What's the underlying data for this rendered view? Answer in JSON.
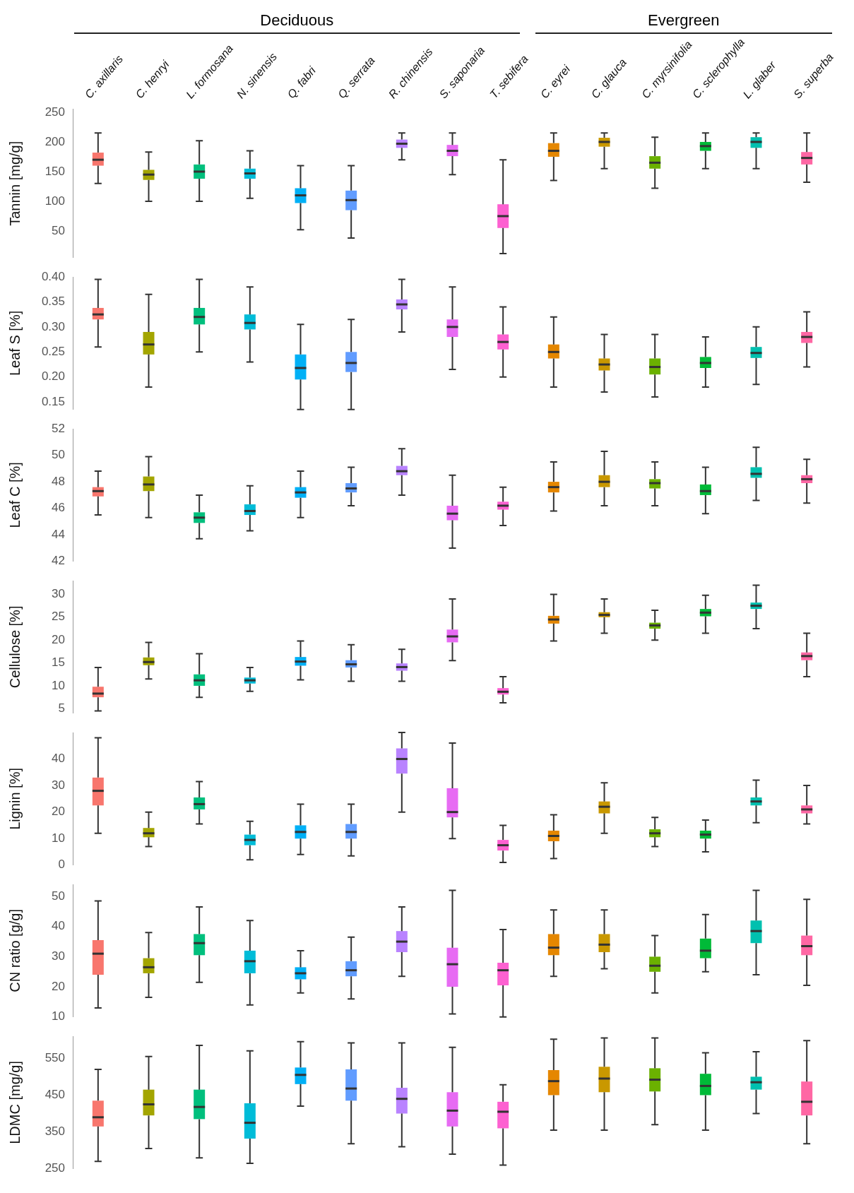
{
  "chart_data": [
    {
      "type": "box",
      "ylabel": "Tannin [mg/g]",
      "annotations": [
        "Deciduous",
        "Evergreen"
      ],
      "categories": [
        "C. axillaris",
        "C. henryi",
        "L. formosana",
        "N. sinensis",
        "Q. fabri",
        "Q. serrata",
        "R. chinensis",
        "S. saponaria",
        "T. sebifera",
        "C. eyrei",
        "C. glauca",
        "C. myrsinifolia",
        "C. sclerophylla",
        "L. glaber",
        "S. superba"
      ],
      "colors": [
        "#f8766d",
        "#a3a500",
        "#00bf7d",
        "#00bcd8",
        "#00b0f6",
        "#619cff",
        "#b983ff",
        "#e76bf3",
        "#fd61d1",
        "#e58700",
        "#c99800",
        "#6bb100",
        "#00ba38",
        "#00c0af",
        "#ff67a4"
      ],
      "ylim": [
        5,
        255
      ],
      "yticks": [
        50,
        100,
        150,
        200,
        250
      ],
      "grid": false,
      "boxes": [
        {
          "low": 130,
          "q1": 160,
          "median": 170,
          "q3": 182,
          "high": 215
        },
        {
          "low": 100,
          "q1": 136,
          "median": 145,
          "q3": 153,
          "high": 183
        },
        {
          "low": 100,
          "q1": 138,
          "median": 150,
          "q3": 162,
          "high": 202
        },
        {
          "low": 105,
          "q1": 138,
          "median": 147,
          "q3": 155,
          "high": 185
        },
        {
          "low": 52,
          "q1": 97,
          "median": 110,
          "q3": 122,
          "high": 160
        },
        {
          "low": 38,
          "q1": 85,
          "median": 102,
          "q3": 118,
          "high": 160
        },
        {
          "low": 170,
          "q1": 190,
          "median": 197,
          "q3": 204,
          "high": 215
        },
        {
          "low": 145,
          "q1": 176,
          "median": 185,
          "q3": 195,
          "high": 215
        },
        {
          "low": 12,
          "q1": 55,
          "median": 75,
          "q3": 95,
          "high": 170
        },
        {
          "low": 135,
          "q1": 175,
          "median": 185,
          "q3": 198,
          "high": 215
        },
        {
          "low": 155,
          "q1": 192,
          "median": 200,
          "q3": 207,
          "high": 215
        },
        {
          "low": 122,
          "q1": 155,
          "median": 165,
          "q3": 176,
          "high": 208
        },
        {
          "low": 155,
          "q1": 185,
          "median": 193,
          "q3": 200,
          "high": 215
        },
        {
          "low": 155,
          "q1": 190,
          "median": 200,
          "q3": 208,
          "high": 215
        },
        {
          "low": 132,
          "q1": 162,
          "median": 173,
          "q3": 183,
          "high": 215
        }
      ]
    },
    {
      "type": "box",
      "ylabel": "Leaf S [%]",
      "tick_labels": "y",
      "colors": [
        "#f8766d",
        "#a3a500",
        "#00bf7d",
        "#00bcd8",
        "#00b0f6",
        "#619cff",
        "#b983ff",
        "#e76bf3",
        "#fd61d1",
        "#e58700",
        "#c99800",
        "#6bb100",
        "#00ba38",
        "#00c0af",
        "#ff67a4"
      ],
      "ylim": [
        0.135,
        0.4
      ],
      "yticks": [
        {
          "value": 0.15,
          "label": "0.15"
        },
        {
          "value": 0.2,
          "label": "0.20"
        },
        {
          "value": 0.25,
          "label": "0.25"
        },
        {
          "value": 0.3,
          "label": "0.30"
        },
        {
          "value": 0.35,
          "label": "0.35"
        },
        {
          "value": 0.4,
          "label": "0.40"
        }
      ],
      "grid": false,
      "boxes": [
        {
          "low": 0.26,
          "q1": 0.315,
          "median": 0.325,
          "q3": 0.338,
          "high": 0.395
        },
        {
          "low": 0.18,
          "q1": 0.245,
          "median": 0.265,
          "q3": 0.29,
          "high": 0.365
        },
        {
          "low": 0.25,
          "q1": 0.305,
          "median": 0.32,
          "q3": 0.338,
          "high": 0.395
        },
        {
          "low": 0.23,
          "q1": 0.295,
          "median": 0.308,
          "q3": 0.325,
          "high": 0.38
        },
        {
          "low": 0.135,
          "q1": 0.195,
          "median": 0.218,
          "q3": 0.245,
          "high": 0.305
        },
        {
          "low": 0.135,
          "q1": 0.21,
          "median": 0.228,
          "q3": 0.25,
          "high": 0.315
        },
        {
          "low": 0.29,
          "q1": 0.335,
          "median": 0.345,
          "q3": 0.355,
          "high": 0.395
        },
        {
          "low": 0.215,
          "q1": 0.28,
          "median": 0.3,
          "q3": 0.315,
          "high": 0.38
        },
        {
          "low": 0.2,
          "q1": 0.255,
          "median": 0.27,
          "q3": 0.285,
          "high": 0.34
        },
        {
          "low": 0.18,
          "q1": 0.237,
          "median": 0.25,
          "q3": 0.265,
          "high": 0.32
        },
        {
          "low": 0.17,
          "q1": 0.213,
          "median": 0.225,
          "q3": 0.237,
          "high": 0.285
        },
        {
          "low": 0.16,
          "q1": 0.205,
          "median": 0.22,
          "q3": 0.237,
          "high": 0.285
        },
        {
          "low": 0.18,
          "q1": 0.218,
          "median": 0.228,
          "q3": 0.24,
          "high": 0.28
        },
        {
          "low": 0.185,
          "q1": 0.238,
          "median": 0.248,
          "q3": 0.26,
          "high": 0.3
        },
        {
          "low": 0.22,
          "q1": 0.268,
          "median": 0.28,
          "q3": 0.29,
          "high": 0.33
        }
      ]
    },
    {
      "type": "box",
      "ylabel": "Leaf C [%]",
      "tick_labels": "y",
      "colors": [
        "#f8766d",
        "#a3a500",
        "#00bf7d",
        "#00bcd8",
        "#00b0f6",
        "#619cff",
        "#b983ff",
        "#e76bf3",
        "#fd61d1",
        "#e58700",
        "#c99800",
        "#6bb100",
        "#00ba38",
        "#00c0af",
        "#ff67a4"
      ],
      "ylim": [
        42,
        52
      ],
      "yticks": [
        42,
        44,
        46,
        48,
        50,
        52
      ],
      "grid": false,
      "boxes": [
        {
          "low": 45.5,
          "q1": 46.9,
          "median": 47.3,
          "q3": 47.6,
          "high": 48.8
        },
        {
          "low": 45.3,
          "q1": 47.3,
          "median": 47.8,
          "q3": 48.4,
          "high": 49.9
        },
        {
          "low": 43.7,
          "q1": 44.9,
          "median": 45.3,
          "q3": 45.7,
          "high": 47
        },
        {
          "low": 44.3,
          "q1": 45.5,
          "median": 45.8,
          "q3": 46.3,
          "high": 47.7
        },
        {
          "low": 45.3,
          "q1": 46.8,
          "median": 47.2,
          "q3": 47.6,
          "high": 48.8
        },
        {
          "low": 46.2,
          "q1": 47.2,
          "median": 47.5,
          "q3": 47.9,
          "high": 49.1
        },
        {
          "low": 47,
          "q1": 48.5,
          "median": 48.8,
          "q3": 49.2,
          "high": 50.5
        },
        {
          "low": 43,
          "q1": 45.1,
          "median": 45.6,
          "q3": 46.2,
          "high": 48.5
        },
        {
          "low": 44.7,
          "q1": 45.9,
          "median": 46.2,
          "q3": 46.5,
          "high": 47.6
        },
        {
          "low": 45.8,
          "q1": 47.2,
          "median": 47.6,
          "q3": 48,
          "high": 49.5
        },
        {
          "low": 46.2,
          "q1": 47.6,
          "median": 48,
          "q3": 48.5,
          "high": 50.3
        },
        {
          "low": 46.2,
          "q1": 47.5,
          "median": 47.9,
          "q3": 48.2,
          "high": 49.5
        },
        {
          "low": 45.6,
          "q1": 47,
          "median": 47.3,
          "q3": 47.8,
          "high": 49.1
        },
        {
          "low": 46.6,
          "q1": 48.3,
          "median": 48.6,
          "q3": 49.1,
          "high": 50.6
        },
        {
          "low": 46.4,
          "q1": 47.9,
          "median": 48.2,
          "q3": 48.5,
          "high": 49.7
        }
      ]
    },
    {
      "type": "box",
      "ylabel": "Cellulose [%]",
      "tick_labels": "y",
      "colors": [
        "#f8766d",
        "#a3a500",
        "#00bf7d",
        "#00bcd8",
        "#00b0f6",
        "#619cff",
        "#b983ff",
        "#e76bf3",
        "#fd61d1",
        "#e58700",
        "#c99800",
        "#6bb100",
        "#00ba38",
        "#00c0af",
        "#ff67a4"
      ],
      "ylim": [
        4,
        33
      ],
      "yticks": [
        5,
        10,
        15,
        20,
        25,
        30
      ],
      "grid": false,
      "boxes": [
        {
          "low": 4.5,
          "q1": 7.5,
          "median": 8.3,
          "q3": 9.8,
          "high": 14
        },
        {
          "low": 11.5,
          "q1": 14.5,
          "median": 15.2,
          "q3": 16.2,
          "high": 19.5
        },
        {
          "low": 7.5,
          "q1": 10,
          "median": 11.2,
          "q3": 12.5,
          "high": 17
        },
        {
          "low": 8.8,
          "q1": 10.5,
          "median": 11.2,
          "q3": 11.8,
          "high": 14
        },
        {
          "low": 11.3,
          "q1": 14.4,
          "median": 15.3,
          "q3": 16.3,
          "high": 19.8
        },
        {
          "low": 11,
          "q1": 14,
          "median": 14.7,
          "q3": 15.6,
          "high": 19
        },
        {
          "low": 11,
          "q1": 13.3,
          "median": 14.1,
          "q3": 14.9,
          "high": 18
        },
        {
          "low": 15.5,
          "q1": 19.5,
          "median": 20.8,
          "q3": 22.3,
          "high": 29
        },
        {
          "low": 6.3,
          "q1": 8.1,
          "median": 8.7,
          "q3": 9.5,
          "high": 12
        },
        {
          "low": 19.8,
          "q1": 23.6,
          "median": 24.5,
          "q3": 25.3,
          "high": 30
        },
        {
          "low": 21.5,
          "q1": 25,
          "median": 25.5,
          "q3": 26.1,
          "high": 29
        },
        {
          "low": 20,
          "q1": 22.5,
          "median": 23.2,
          "q3": 23.8,
          "high": 26.5
        },
        {
          "low": 21.5,
          "q1": 25.2,
          "median": 26,
          "q3": 26.8,
          "high": 29.8
        },
        {
          "low": 22.5,
          "q1": 26.8,
          "median": 27.5,
          "q3": 28.2,
          "high": 32
        },
        {
          "low": 12,
          "q1": 15.6,
          "median": 16.5,
          "q3": 17.3,
          "high": 21.5
        }
      ]
    },
    {
      "type": "box",
      "ylabel": "Lignin [%]",
      "tick_labels": "y",
      "colors": [
        "#f8766d",
        "#a3a500",
        "#00bf7d",
        "#00bcd8",
        "#00b0f6",
        "#619cff",
        "#b983ff",
        "#e76bf3",
        "#fd61d1",
        "#e58700",
        "#c99800",
        "#6bb100",
        "#00ba38",
        "#00c0af",
        "#ff67a4"
      ],
      "ylim": [
        0,
        50
      ],
      "yticks": [
        0,
        10,
        20,
        30,
        40
      ],
      "grid": false,
      "boxes": [
        {
          "low": 12,
          "q1": 22.5,
          "median": 28,
          "q3": 33,
          "high": 48
        },
        {
          "low": 7,
          "q1": 10.5,
          "median": 12,
          "q3": 14,
          "high": 20
        },
        {
          "low": 15.5,
          "q1": 21,
          "median": 23,
          "q3": 25.5,
          "high": 31.5
        },
        {
          "low": 2,
          "q1": 7.5,
          "median": 9.5,
          "q3": 11.5,
          "high": 16.5
        },
        {
          "low": 4,
          "q1": 10,
          "median": 12.5,
          "q3": 15,
          "high": 23
        },
        {
          "low": 3.5,
          "q1": 10,
          "median": 12.5,
          "q3": 15.5,
          "high": 23
        },
        {
          "low": 20,
          "q1": 34.5,
          "median": 40,
          "q3": 44,
          "high": 50
        },
        {
          "low": 10,
          "q1": 18,
          "median": 20,
          "q3": 29,
          "high": 46
        },
        {
          "low": 1,
          "q1": 5.5,
          "median": 7.5,
          "q3": 9.5,
          "high": 15
        },
        {
          "low": 2.5,
          "q1": 9,
          "median": 11,
          "q3": 13,
          "high": 19
        },
        {
          "low": 12,
          "q1": 19.5,
          "median": 22,
          "q3": 24,
          "high": 31
        },
        {
          "low": 7,
          "q1": 10.5,
          "median": 12,
          "q3": 13.5,
          "high": 18
        },
        {
          "low": 5,
          "q1": 10,
          "median": 11.5,
          "q3": 13,
          "high": 17
        },
        {
          "low": 16,
          "q1": 22.5,
          "median": 24,
          "q3": 25.5,
          "high": 32
        },
        {
          "low": 15.5,
          "q1": 19.5,
          "median": 21,
          "q3": 22.5,
          "high": 30
        }
      ]
    },
    {
      "type": "box",
      "ylabel": "CN ratio [g/g]",
      "tick_labels": "y",
      "colors": [
        "#f8766d",
        "#a3a500",
        "#00bf7d",
        "#00bcd8",
        "#00b0f6",
        "#619cff",
        "#b983ff",
        "#e76bf3",
        "#fd61d1",
        "#e58700",
        "#c99800",
        "#6bb100",
        "#00ba38",
        "#00c0af",
        "#ff67a4"
      ],
      "ylim": [
        10,
        54
      ],
      "yticks": [
        10,
        20,
        30,
        40,
        50
      ],
      "grid": false,
      "boxes": [
        {
          "low": 13,
          "q1": 24,
          "median": 31,
          "q3": 35.5,
          "high": 48.5
        },
        {
          "low": 16.5,
          "q1": 24.5,
          "median": 26.5,
          "q3": 29.5,
          "high": 38
        },
        {
          "low": 21.5,
          "q1": 30.5,
          "median": 34.5,
          "q3": 37.5,
          "high": 46.5
        },
        {
          "low": 14,
          "q1": 24.5,
          "median": 28.5,
          "q3": 32,
          "high": 42
        },
        {
          "low": 18,
          "q1": 22.5,
          "median": 24.5,
          "q3": 26.5,
          "high": 32
        },
        {
          "low": 16,
          "q1": 23.5,
          "median": 25.5,
          "q3": 28.5,
          "high": 36.5
        },
        {
          "low": 23.5,
          "q1": 31.5,
          "median": 35,
          "q3": 38.5,
          "high": 46.5
        },
        {
          "low": 11,
          "q1": 20,
          "median": 27.5,
          "q3": 33,
          "high": 52
        },
        {
          "low": 10,
          "q1": 20.5,
          "median": 25.5,
          "q3": 28,
          "high": 39
        },
        {
          "low": 23.5,
          "q1": 30.5,
          "median": 33,
          "q3": 37.5,
          "high": 45.5
        },
        {
          "low": 26,
          "q1": 31.5,
          "median": 34,
          "q3": 37.5,
          "high": 45.5
        },
        {
          "low": 18,
          "q1": 25,
          "median": 27,
          "q3": 30,
          "high": 37
        },
        {
          "low": 25,
          "q1": 29.5,
          "median": 32,
          "q3": 36,
          "high": 44
        },
        {
          "low": 24,
          "q1": 34.5,
          "median": 38.5,
          "q3": 42,
          "high": 52
        },
        {
          "low": 20.5,
          "q1": 30.5,
          "median": 33.5,
          "q3": 37,
          "high": 49
        }
      ]
    },
    {
      "type": "box",
      "ylabel": "LDMC [mg/g]",
      "tick_labels": "y",
      "colors": [
        "#f8766d",
        "#a3a500",
        "#00bf7d",
        "#00bcd8",
        "#00b0f6",
        "#619cff",
        "#b983ff",
        "#e76bf3",
        "#fd61d1",
        "#e58700",
        "#c99800",
        "#6bb100",
        "#00ba38",
        "#00c0af",
        "#ff67a4"
      ],
      "ylim": [
        250,
        610
      ],
      "yticks": [
        250,
        350,
        450,
        550
      ],
      "grid": false,
      "boxes": [
        {
          "low": 270,
          "q1": 365,
          "median": 390,
          "q3": 435,
          "high": 520
        },
        {
          "low": 305,
          "q1": 395,
          "median": 425,
          "q3": 465,
          "high": 555
        },
        {
          "low": 280,
          "q1": 385,
          "median": 418,
          "q3": 465,
          "high": 585
        },
        {
          "low": 265,
          "q1": 332,
          "median": 375,
          "q3": 428,
          "high": 570
        },
        {
          "low": 420,
          "q1": 480,
          "median": 505,
          "q3": 525,
          "high": 595
        },
        {
          "low": 318,
          "q1": 435,
          "median": 468,
          "q3": 520,
          "high": 592
        },
        {
          "low": 310,
          "q1": 400,
          "median": 440,
          "q3": 470,
          "high": 592
        },
        {
          "low": 290,
          "q1": 365,
          "median": 408,
          "q3": 458,
          "high": 580
        },
        {
          "low": 260,
          "q1": 360,
          "median": 405,
          "q3": 432,
          "high": 478
        },
        {
          "low": 355,
          "q1": 450,
          "median": 488,
          "q3": 518,
          "high": 602
        },
        {
          "low": 355,
          "q1": 458,
          "median": 495,
          "q3": 527,
          "high": 605
        },
        {
          "low": 370,
          "q1": 460,
          "median": 492,
          "q3": 523,
          "high": 605
        },
        {
          "low": 355,
          "q1": 450,
          "median": 475,
          "q3": 508,
          "high": 565
        },
        {
          "low": 400,
          "q1": 465,
          "median": 485,
          "q3": 500,
          "high": 568
        },
        {
          "low": 318,
          "q1": 395,
          "median": 432,
          "q3": 487,
          "high": 598
        }
      ]
    }
  ]
}
